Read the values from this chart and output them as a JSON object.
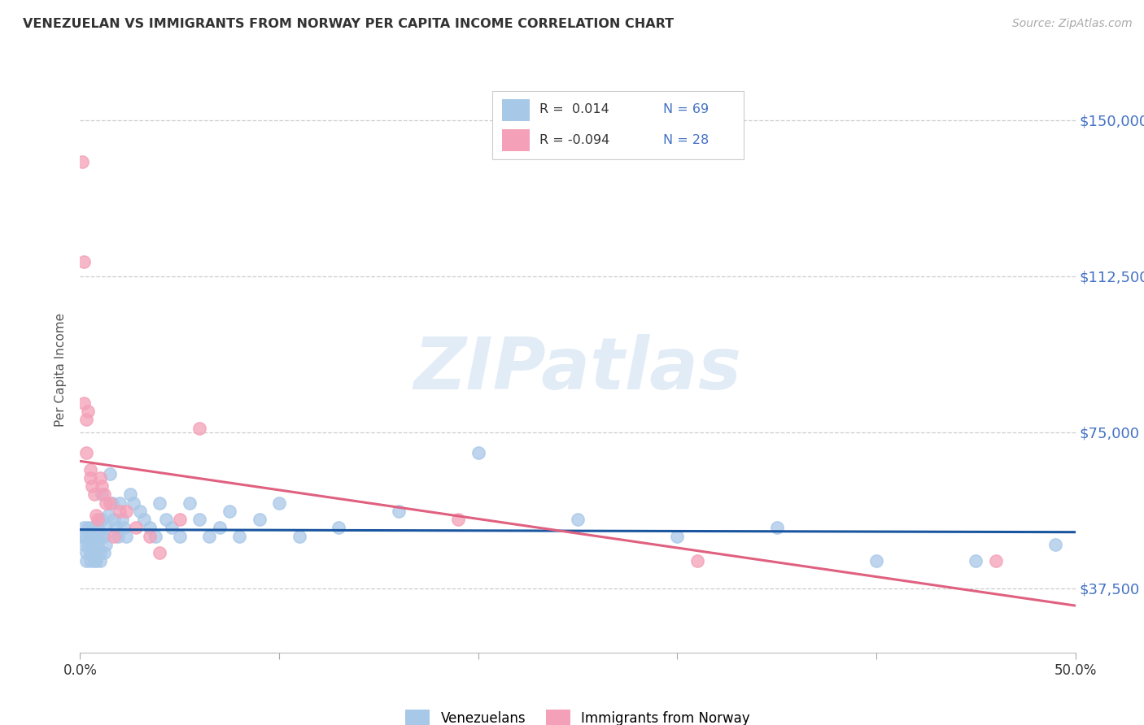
{
  "title": "VENEZUELAN VS IMMIGRANTS FROM NORWAY PER CAPITA INCOME CORRELATION CHART",
  "source": "Source: ZipAtlas.com",
  "ylabel": "Per Capita Income",
  "yticks": [
    37500,
    75000,
    112500,
    150000
  ],
  "ytick_labels": [
    "$37,500",
    "$75,000",
    "$112,500",
    "$150,000"
  ],
  "xlim": [
    0.0,
    0.5
  ],
  "ylim": [
    22000,
    158000
  ],
  "venezuelan_color": "#a8c8e8",
  "norway_color": "#f4a0b8",
  "venezuelan_line_color": "#1a56a0",
  "norway_line_color": "#e06080",
  "watermark_text": "ZIPatlas",
  "legend_label1": "Venezuelans",
  "legend_label2": "Immigrants from Norway",
  "venezuelan_x": [
    0.001,
    0.002,
    0.002,
    0.003,
    0.003,
    0.003,
    0.004,
    0.004,
    0.005,
    0.005,
    0.005,
    0.006,
    0.006,
    0.006,
    0.007,
    0.007,
    0.007,
    0.008,
    0.008,
    0.008,
    0.009,
    0.009,
    0.01,
    0.01,
    0.01,
    0.011,
    0.011,
    0.012,
    0.012,
    0.013,
    0.013,
    0.014,
    0.015,
    0.016,
    0.017,
    0.018,
    0.019,
    0.02,
    0.021,
    0.022,
    0.023,
    0.025,
    0.027,
    0.03,
    0.032,
    0.035,
    0.038,
    0.04,
    0.043,
    0.046,
    0.05,
    0.055,
    0.06,
    0.065,
    0.07,
    0.075,
    0.08,
    0.09,
    0.1,
    0.11,
    0.13,
    0.16,
    0.2,
    0.25,
    0.3,
    0.35,
    0.4,
    0.45,
    0.49
  ],
  "venezuelan_y": [
    50000,
    48000,
    52000,
    46000,
    50000,
    44000,
    48000,
    52000,
    46000,
    50000,
    44000,
    48000,
    46000,
    52000,
    50000,
    44000,
    48000,
    46000,
    50000,
    44000,
    48000,
    52000,
    50000,
    46000,
    44000,
    60000,
    54000,
    50000,
    46000,
    52000,
    48000,
    55000,
    65000,
    58000,
    54000,
    52000,
    50000,
    58000,
    54000,
    52000,
    50000,
    60000,
    58000,
    56000,
    54000,
    52000,
    50000,
    58000,
    54000,
    52000,
    50000,
    58000,
    54000,
    50000,
    52000,
    56000,
    50000,
    54000,
    58000,
    50000,
    52000,
    56000,
    70000,
    54000,
    50000,
    52000,
    44000,
    44000,
    48000
  ],
  "norway_x": [
    0.001,
    0.002,
    0.002,
    0.003,
    0.003,
    0.004,
    0.005,
    0.005,
    0.006,
    0.007,
    0.008,
    0.009,
    0.01,
    0.011,
    0.012,
    0.013,
    0.015,
    0.017,
    0.02,
    0.023,
    0.028,
    0.035,
    0.04,
    0.05,
    0.06,
    0.19,
    0.31,
    0.46
  ],
  "norway_y": [
    140000,
    116000,
    82000,
    78000,
    70000,
    80000,
    66000,
    64000,
    62000,
    60000,
    55000,
    54000,
    64000,
    62000,
    60000,
    58000,
    58000,
    50000,
    56000,
    56000,
    52000,
    50000,
    46000,
    54000,
    76000,
    54000,
    44000,
    44000
  ]
}
